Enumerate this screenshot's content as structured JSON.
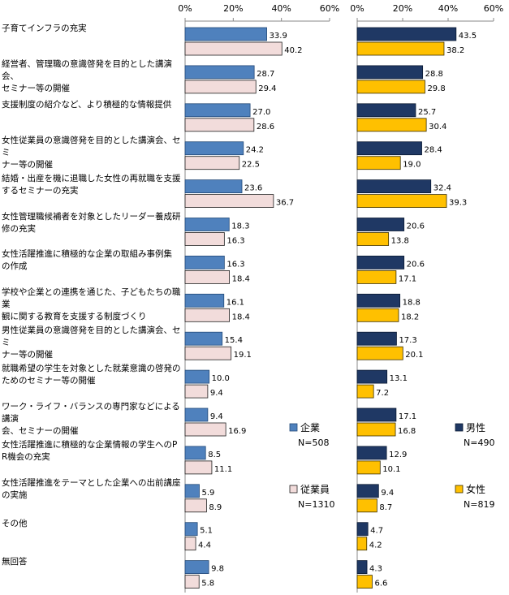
{
  "chart_data": [
    {
      "type": "bar",
      "orientation": "horizontal",
      "categories": [
        "子育てインフラの充実",
        "経営者、管理職の意識啓発を目的とした講演会、\nセミナー等の開催",
        "支援制度の紹介など、より積極的な情報提供",
        "女性従業員の意識啓発を目的とした講演会、セミ\nナー等の開催",
        "結婚・出産を機に退職した女性の再就職を支援\nするセミナーの充実",
        "女性管理職候補者を対象としたリーダー養成研\n修の充実",
        "女性活躍推進に積極的な企業の取組み事例集\nの作成",
        "学校や企業との連携を通じた、子どもたちの職業\n観に関する教育を支援する制度づくり",
        "男性従業員の意識啓発を目的とした講演会、セミ\nナー等の開催",
        "就職希望の学生を対象とした就業意識の啓発の\nためのセミナー等の開催",
        "ワーク・ライフ・バランスの専門家などによる講演\n会、セミナーの開催",
        "女性活躍推進に積極的な企業情報の学生へのP\nR機会の充実",
        "女性活躍推進をテーマとした企業への出前講座\nの実施",
        "その他",
        "無回答"
      ],
      "xlim": [
        0,
        60
      ],
      "xticks": [
        "0%",
        "20%",
        "40%",
        "60%"
      ],
      "series": [
        {
          "name": "企業",
          "n_label": "N=508",
          "color": "#4F81BD",
          "border": "#244A78",
          "values": [
            33.9,
            28.7,
            27.0,
            24.2,
            23.6,
            18.3,
            16.3,
            16.1,
            15.4,
            10.0,
            9.4,
            8.5,
            5.9,
            5.1,
            9.8
          ]
        },
        {
          "name": "従業員",
          "n_label": "N=1310",
          "color": "#F2DCDB",
          "border": "#1F1F1F",
          "values": [
            40.2,
            29.4,
            28.6,
            22.5,
            36.7,
            16.3,
            18.4,
            18.4,
            19.1,
            9.4,
            16.9,
            11.1,
            8.9,
            4.4,
            5.8
          ]
        }
      ]
    },
    {
      "type": "bar",
      "orientation": "horizontal",
      "xlim": [
        0,
        60
      ],
      "xticks": [
        "0%",
        "20%",
        "40%",
        "60%"
      ],
      "series": [
        {
          "name": "男性",
          "n_label": "N=490",
          "color": "#1F3864",
          "border": "#0B1A33",
          "values": [
            43.5,
            28.8,
            25.7,
            28.4,
            32.4,
            20.6,
            20.6,
            18.8,
            17.3,
            13.1,
            17.1,
            12.9,
            9.4,
            4.7,
            4.3
          ]
        },
        {
          "name": "女性",
          "n_label": "N=819",
          "color": "#FFC000",
          "border": "#3A2E00",
          "values": [
            38.2,
            29.8,
            30.4,
            19.0,
            39.3,
            13.8,
            17.1,
            18.2,
            20.1,
            7.2,
            16.8,
            10.1,
            8.7,
            4.2,
            6.6
          ]
        }
      ]
    }
  ]
}
